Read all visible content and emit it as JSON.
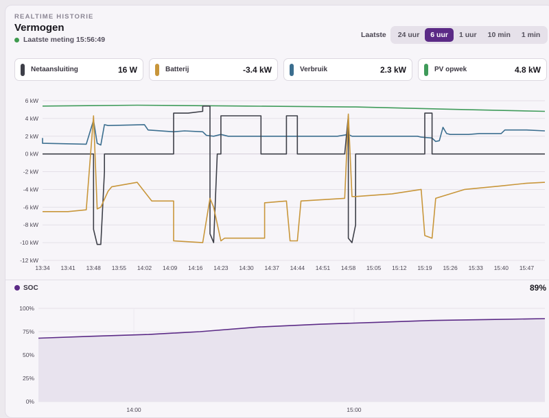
{
  "header": {
    "eyebrow": "REALTIME HISTORIE",
    "title": "Vermogen",
    "last_measurement": "Laatste meting 15:56:49"
  },
  "range_selector": {
    "label": "Laatste",
    "options": [
      "24 uur",
      "6 uur",
      "1 uur",
      "10 min",
      "1 min"
    ],
    "active": "6 uur"
  },
  "legend": [
    {
      "name": "Netaansluiting",
      "value": "16 W",
      "color": "#3d3f48"
    },
    {
      "name": "Batterij",
      "value": "-3.4 kW",
      "color": "#c8963a"
    },
    {
      "name": "Verbruik",
      "value": "2.3 kW",
      "color": "#3b6e8f"
    },
    {
      "name": "PV opwek",
      "value": "4.8 kW",
      "color": "#3f9b5a"
    }
  ],
  "soc": {
    "label": "SOC",
    "value": "89%",
    "color": "#5b2a86"
  },
  "chart_data": [
    {
      "type": "line",
      "unit": "kW",
      "ylim": [
        -12,
        6
      ],
      "yticks": [
        "6 kW",
        "4 kW",
        "2 kW",
        "0 kW",
        "-2 kW",
        "-4 kW",
        "-6 kW",
        "-8 kW",
        "-10 kW",
        "-12 kW"
      ],
      "xlim": [
        "13:34",
        "15:52"
      ],
      "xticks": [
        "13:34",
        "13:41",
        "13:48",
        "13:55",
        "14:02",
        "14:09",
        "14:16",
        "14:23",
        "14:30",
        "14:37",
        "14:44",
        "14:51",
        "14:58",
        "15:05",
        "15:12",
        "15:19",
        "15:26",
        "15:33",
        "15:40",
        "15:47"
      ],
      "grid": true,
      "series": [
        {
          "name": "PV opwek",
          "color": "#3f9b5a",
          "x": [
            "13:34",
            "14:00",
            "14:30",
            "15:00",
            "15:30",
            "15:52"
          ],
          "y": [
            5.4,
            5.5,
            5.4,
            5.3,
            5.0,
            4.8
          ]
        },
        {
          "name": "Verbruik",
          "color": "#3b6e8f",
          "x": [
            "13:34",
            "13:34",
            "13:46",
            "13:48",
            "13:49",
            "13:50",
            "13:51",
            "13:52",
            "14:02",
            "14:03",
            "14:10",
            "14:13",
            "14:18",
            "14:19",
            "14:21",
            "14:23",
            "14:25",
            "14:30",
            "14:40",
            "14:51",
            "14:55",
            "14:58",
            "14:59",
            "15:05",
            "15:12",
            "15:17",
            "15:18",
            "15:21",
            "15:22",
            "15:23",
            "15:24",
            "15:25",
            "15:26",
            "15:31",
            "15:34",
            "15:40",
            "15:41",
            "15:47",
            "15:52"
          ],
          "y": [
            1.8,
            1.2,
            1.1,
            3.8,
            1.2,
            1.0,
            3.3,
            3.2,
            3.3,
            2.7,
            2.5,
            2.6,
            2.5,
            2.1,
            2.0,
            2.2,
            2.0,
            2.0,
            2.0,
            2.0,
            2.0,
            2.2,
            2.0,
            2.0,
            2.0,
            2.0,
            1.9,
            1.8,
            1.4,
            1.5,
            3.0,
            2.3,
            2.2,
            2.2,
            2.3,
            2.3,
            2.7,
            2.7,
            2.6
          ]
        },
        {
          "name": "Netaansluiting",
          "color": "#3d3f48",
          "x": [
            "13:34",
            "13:48",
            "13:48",
            "13:49",
            "13:50",
            "13:51",
            "13:51",
            "14:02",
            "14:03",
            "14:04",
            "14:10",
            "14:10",
            "14:14",
            "14:18",
            "14:18",
            "14:20",
            "14:20",
            "14:21",
            "14:22",
            "14:23",
            "14:23",
            "14:34",
            "14:34",
            "14:41",
            "14:41",
            "14:44",
            "14:44",
            "14:57",
            "14:58",
            "14:58",
            "14:59",
            "15:00",
            "15:00",
            "15:19",
            "15:19",
            "15:21",
            "15:21",
            "15:24",
            "15:24",
            "15:52"
          ],
          "y": [
            0.0,
            0.0,
            -8.5,
            -10.2,
            -10.2,
            -2.0,
            0.0,
            0.0,
            0.0,
            0.0,
            0.0,
            4.6,
            4.6,
            4.8,
            5.4,
            5.4,
            -9.0,
            -10.0,
            0.0,
            0.0,
            4.3,
            4.3,
            0.0,
            0.0,
            4.3,
            4.3,
            0.0,
            0.0,
            4.3,
            -9.5,
            -10.0,
            -8.0,
            0.0,
            0.0,
            4.6,
            4.6,
            0.0,
            0.0,
            0.0,
            0.0
          ]
        },
        {
          "name": "Batterij",
          "color": "#c8963a",
          "x": [
            "13:34",
            "13:41",
            "13:46",
            "13:48",
            "13:49",
            "13:50",
            "13:52",
            "13:53",
            "14:00",
            "14:04",
            "14:10",
            "14:10",
            "14:18",
            "14:20",
            "14:21",
            "14:23",
            "14:24",
            "14:35",
            "14:35",
            "14:41",
            "14:42",
            "14:44",
            "14:45",
            "14:57",
            "14:58",
            "14:59",
            "15:00",
            "15:10",
            "15:18",
            "15:19",
            "15:21",
            "15:22",
            "15:30",
            "15:40",
            "15:47",
            "15:52"
          ],
          "y": [
            -6.5,
            -6.5,
            -6.3,
            4.3,
            -6.2,
            -6.0,
            -4.2,
            -3.7,
            -3.2,
            -5.3,
            -5.3,
            -9.8,
            -10.0,
            -5.0,
            -6.0,
            -9.8,
            -9.5,
            -9.5,
            -5.5,
            -5.3,
            -9.8,
            -9.8,
            -5.3,
            -5.0,
            4.5,
            -4.8,
            -4.8,
            -4.5,
            -4.0,
            -9.2,
            -9.5,
            -5.0,
            -4.0,
            -3.6,
            -3.3,
            -3.2
          ]
        }
      ]
    },
    {
      "type": "area",
      "ylim": [
        0,
        100
      ],
      "yticks": [
        "100%",
        "75%",
        "50%",
        "25%",
        "0%"
      ],
      "xlim": [
        "13:34",
        "15:52"
      ],
      "xticks": [
        "14:00",
        "15:00"
      ],
      "series": [
        {
          "name": "SOC",
          "color": "#5b2a86",
          "x": [
            "13:34",
            "13:48",
            "14:04",
            "14:18",
            "14:34",
            "14:51",
            "15:06",
            "15:21",
            "15:37",
            "15:52"
          ],
          "y": [
            68,
            70,
            72,
            75,
            80,
            83,
            85,
            87,
            88,
            89
          ]
        }
      ]
    }
  ]
}
